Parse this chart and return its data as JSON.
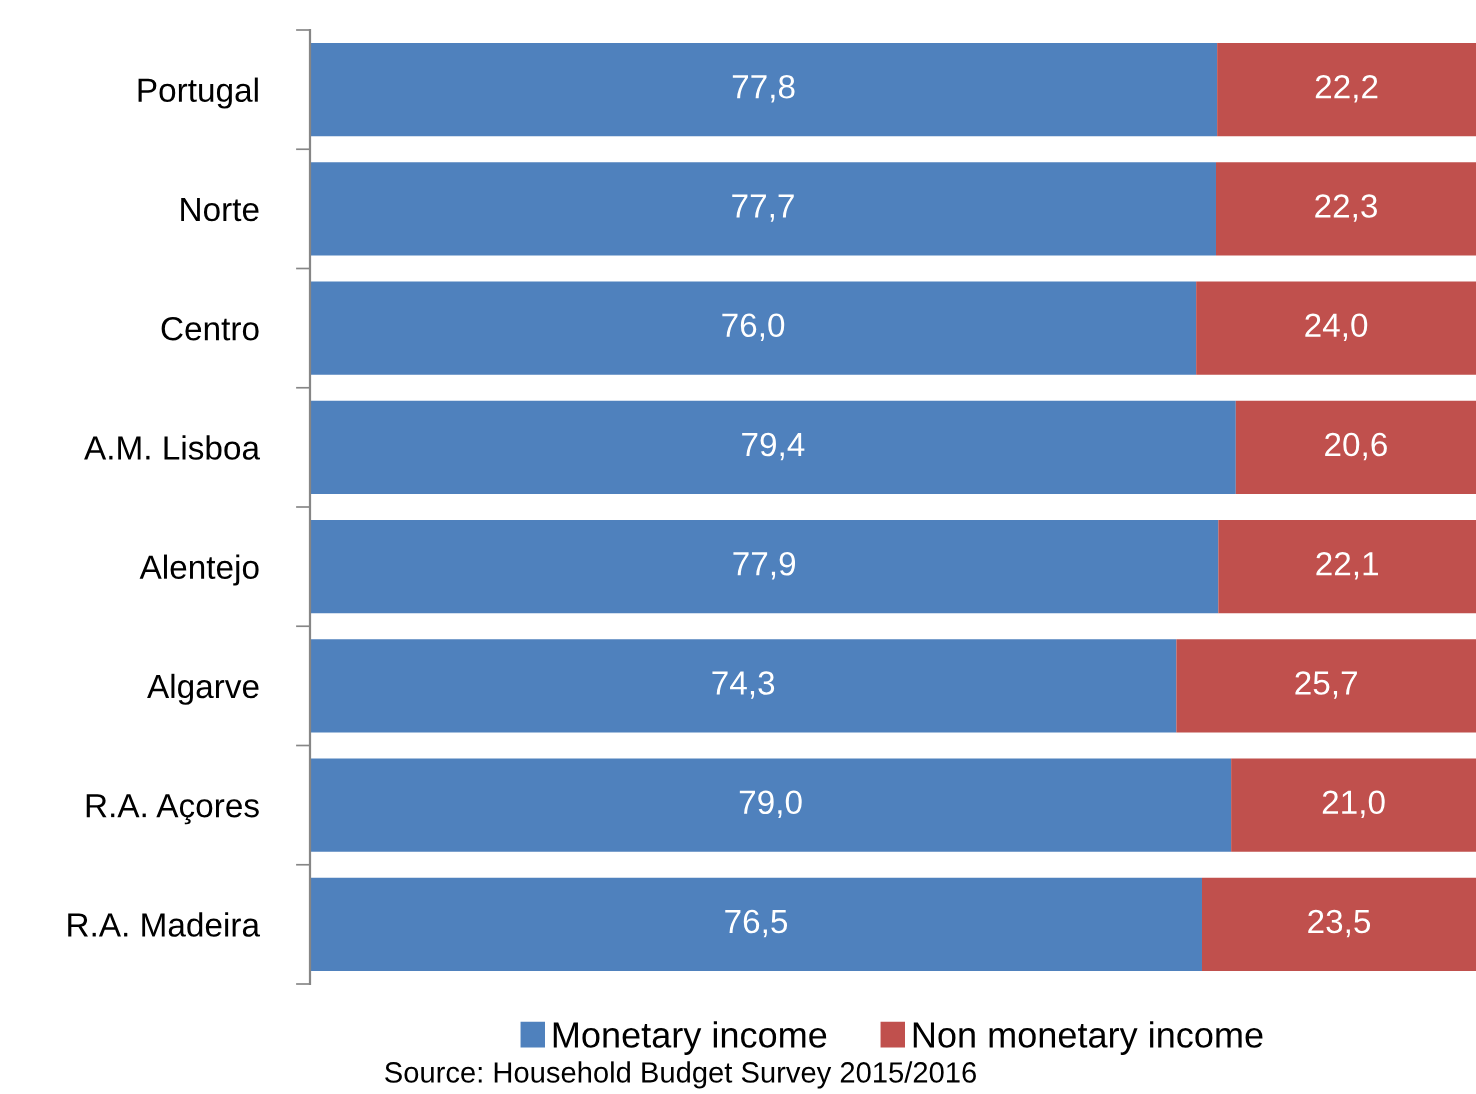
{
  "chart_data": {
    "type": "bar",
    "orientation": "horizontal",
    "stacked": true,
    "categories": [
      "Portugal",
      "Norte",
      "Centro",
      "A.M. Lisboa",
      "Alentejo",
      "Algarve",
      "R.A. Açores",
      "R.A. Madeira"
    ],
    "series": [
      {
        "name": "Monetary income",
        "color": "#4f81bd",
        "values": [
          77.8,
          77.7,
          76.0,
          79.4,
          77.9,
          74.3,
          79.0,
          76.5
        ],
        "value_labels": [
          "77,8",
          "77,7",
          "76,0",
          "79,4",
          "77,9",
          "74,3",
          "79,0",
          "76,5"
        ]
      },
      {
        "name": "Non monetary income",
        "color": "#c0504d",
        "values": [
          22.2,
          22.3,
          24.0,
          20.6,
          22.1,
          25.7,
          21.0,
          23.5
        ],
        "value_labels": [
          "22,2",
          "22,3",
          "24,0",
          "20,6",
          "22,1",
          "25,7",
          "21,0",
          "23,5"
        ]
      }
    ],
    "xlim": [
      0,
      100
    ],
    "tick_labels": "y",
    "grid": false,
    "legend": "bottom",
    "annotations": [
      "Source: Household Budget Survey 2015/2016"
    ]
  }
}
